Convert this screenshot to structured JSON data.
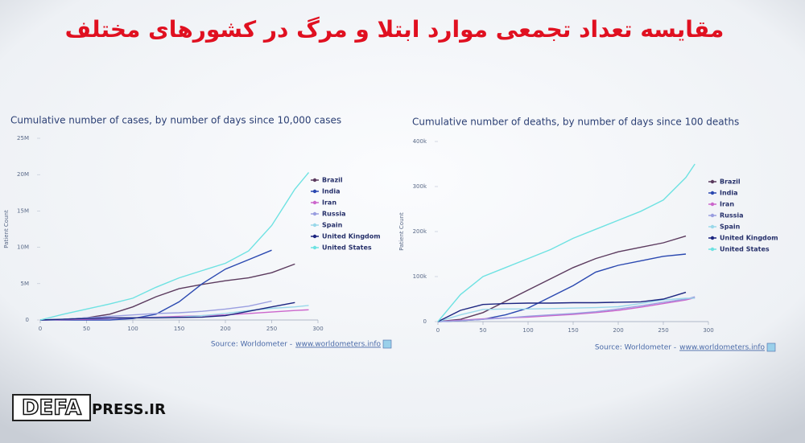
{
  "title": "مقایسه تعداد تجمعی موارد ابتلا و مرگ در کشورهای مختلف",
  "logo": {
    "left": "DEFA",
    "right": "PRESS.IR"
  },
  "chart_data": [
    {
      "type": "line",
      "title": "Cumulative number of cases, by number of days since 10,000 cases",
      "y_label": "Patient Count",
      "source": "Source: Worldometer -",
      "source_link": "www.worldometers.info",
      "x": [
        0,
        25,
        50,
        75,
        100,
        125,
        150,
        175,
        200,
        225,
        250,
        275,
        290
      ],
      "xlim": [
        0,
        300
      ],
      "xticks": [
        0,
        50,
        100,
        150,
        200,
        250,
        300
      ],
      "ylim": [
        0,
        25000000
      ],
      "yticks": [
        0,
        {
          "value": 5000000,
          "label": "5M"
        },
        {
          "value": 10000000,
          "label": "10M"
        },
        {
          "value": 15000000,
          "label": "15M"
        },
        {
          "value": 20000000,
          "label": "20M"
        },
        {
          "value": 25000000,
          "label": "25M"
        }
      ],
      "series": [
        {
          "name": "Brazil",
          "color": "#5b3a5e",
          "values": [
            0,
            100000,
            300000,
            800000,
            1800000,
            3200000,
            4300000,
            4900000,
            5400000,
            5800000,
            6500000,
            7700000,
            null
          ]
        },
        {
          "name": "India",
          "color": "#2a48b0",
          "values": [
            0,
            0,
            0,
            0,
            200000,
            800000,
            2500000,
            5000000,
            7000000,
            8300000,
            9600000,
            null,
            null
          ]
        },
        {
          "name": "Iran",
          "color": "#cc66cc",
          "values": [
            0,
            50000,
            100000,
            200000,
            300000,
            400000,
            500000,
            600000,
            700000,
            900000,
            1100000,
            1300000,
            1400000
          ]
        },
        {
          "name": "Russia",
          "color": "#9a9ee0",
          "values": [
            0,
            100000,
            300000,
            500000,
            700000,
            900000,
            1000000,
            1200000,
            1500000,
            1900000,
            2600000,
            null,
            null
          ]
        },
        {
          "name": "Spain",
          "color": "#9ad8ea",
          "values": [
            0,
            100000,
            200000,
            250000,
            300000,
            350000,
            400000,
            600000,
            900000,
            1300000,
            1600000,
            1800000,
            2000000
          ]
        },
        {
          "name": "United Kingdom",
          "color": "#1c2580",
          "values": [
            0,
            100000,
            200000,
            300000,
            300000,
            300000,
            350000,
            400000,
            600000,
            1200000,
            1800000,
            2400000,
            null
          ]
        },
        {
          "name": "United States",
          "color": "#6ee2e2",
          "values": [
            0,
            800000,
            1500000,
            2200000,
            3000000,
            4500000,
            5800000,
            6800000,
            7800000,
            9500000,
            13000000,
            18000000,
            20300000
          ]
        }
      ]
    },
    {
      "type": "line",
      "title": "Cumulative number of deaths, by number of days since 100 deaths",
      "y_label": "Patient Count",
      "source": "Source: Worldometer -",
      "source_link": "www.worldometers.info",
      "x": [
        0,
        25,
        50,
        75,
        100,
        125,
        150,
        175,
        200,
        225,
        250,
        275,
        285
      ],
      "xlim": [
        0,
        300
      ],
      "xticks": [
        0,
        50,
        100,
        150,
        200,
        250,
        300
      ],
      "ylim": [
        0,
        400000
      ],
      "yticks": [
        0,
        {
          "value": 100000,
          "label": "100k"
        },
        {
          "value": 200000,
          "label": "200k"
        },
        {
          "value": 300000,
          "label": "300k"
        },
        {
          "value": 400000,
          "label": "400k"
        }
      ],
      "series": [
        {
          "name": "Brazil",
          "color": "#5b3a5e",
          "values": [
            0,
            5000,
            20000,
            45000,
            70000,
            95000,
            120000,
            140000,
            155000,
            165000,
            175000,
            190000,
            null
          ]
        },
        {
          "name": "India",
          "color": "#2a48b0",
          "values": [
            0,
            2000,
            5000,
            15000,
            30000,
            55000,
            80000,
            110000,
            125000,
            135000,
            145000,
            150000,
            null
          ]
        },
        {
          "name": "Iran",
          "color": "#cc66cc",
          "values": [
            0,
            3000,
            6000,
            8000,
            10000,
            13000,
            16000,
            20000,
            25000,
            32000,
            40000,
            48000,
            53000
          ]
        },
        {
          "name": "Russia",
          "color": "#9a9ee0",
          "values": [
            0,
            2000,
            5000,
            8000,
            12000,
            15000,
            18000,
            22000,
            28000,
            35000,
            43000,
            50000,
            55000
          ]
        },
        {
          "name": "Spain",
          "color": "#9ad8ea",
          "values": [
            0,
            15000,
            27000,
            28000,
            28000,
            29000,
            30000,
            31000,
            33000,
            40000,
            48000,
            52000,
            52000
          ]
        },
        {
          "name": "United Kingdom",
          "color": "#1c2580",
          "values": [
            0,
            25000,
            38000,
            40000,
            41000,
            41000,
            42000,
            42000,
            43000,
            44000,
            50000,
            65000,
            null
          ]
        },
        {
          "name": "United States",
          "color": "#6ee2e2",
          "values": [
            0,
            60000,
            100000,
            120000,
            140000,
            160000,
            185000,
            205000,
            225000,
            245000,
            270000,
            320000,
            350000
          ]
        }
      ]
    }
  ]
}
